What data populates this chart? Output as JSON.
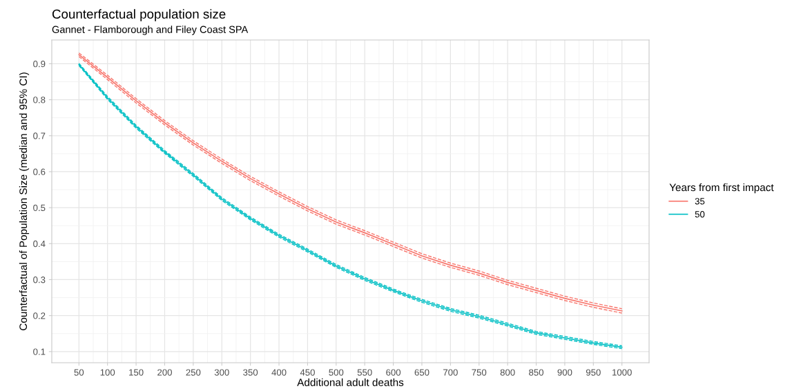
{
  "chart_data": {
    "type": "line",
    "title": "Counterfactual population size",
    "subtitle": "Gannet - Flamborough and Filey Coast SPA",
    "xlabel": "Additional adult deaths",
    "ylabel": "Counterfactual of Population Size (median and 95% CI)",
    "legend_title": "Years from first impact",
    "legend": "right",
    "grid": true,
    "line_style": "solid",
    "marker": "none",
    "x": [
      50,
      100,
      150,
      200,
      250,
      300,
      350,
      400,
      450,
      500,
      550,
      600,
      650,
      700,
      750,
      800,
      850,
      900,
      950,
      1000
    ],
    "series": [
      {
        "name": "35",
        "color": "#f8766d",
        "values": [
          0.925,
          0.862,
          0.797,
          0.736,
          0.68,
          0.629,
          0.581,
          0.538,
          0.497,
          0.46,
          0.43,
          0.398,
          0.366,
          0.34,
          0.318,
          0.292,
          0.27,
          0.248,
          0.229,
          0.213
        ]
      },
      {
        "color": "#f8766d",
        "line_style": "dashed",
        "values": [
          0.92,
          0.856,
          0.791,
          0.73,
          0.674,
          0.623,
          0.575,
          0.532,
          0.491,
          0.454,
          0.424,
          0.392,
          0.36,
          0.334,
          0.312,
          0.286,
          0.264,
          0.242,
          0.223,
          0.207
        ]
      },
      {
        "color": "#f8766d",
        "line_style": "dashed",
        "values": [
          0.93,
          0.868,
          0.803,
          0.742,
          0.686,
          0.635,
          0.587,
          0.544,
          0.503,
          0.466,
          0.436,
          0.404,
          0.372,
          0.346,
          0.324,
          0.298,
          0.276,
          0.254,
          0.235,
          0.219
        ]
      },
      {
        "name": "50",
        "color": "#00bfc4",
        "values": [
          0.898,
          0.805,
          0.725,
          0.655,
          0.591,
          0.524,
          0.47,
          0.422,
          0.381,
          0.338,
          0.302,
          0.27,
          0.241,
          0.216,
          0.197,
          0.175,
          0.152,
          0.138,
          0.124,
          0.112
        ]
      },
      {
        "color": "#00bfc4",
        "line_style": "dashed",
        "values": [
          0.895,
          0.801,
          0.721,
          0.651,
          0.587,
          0.52,
          0.466,
          0.418,
          0.377,
          0.334,
          0.298,
          0.266,
          0.237,
          0.212,
          0.193,
          0.171,
          0.148,
          0.134,
          0.12,
          0.108
        ]
      },
      {
        "color": "#00bfc4",
        "line_style": "dashed",
        "values": [
          0.901,
          0.809,
          0.729,
          0.659,
          0.595,
          0.528,
          0.474,
          0.426,
          0.385,
          0.342,
          0.306,
          0.274,
          0.245,
          0.22,
          0.201,
          0.179,
          0.156,
          0.142,
          0.128,
          0.116
        ]
      }
    ],
    "xlim": [
      2.5,
      1047.5
    ],
    "xticks": [
      50,
      100,
      150,
      200,
      250,
      300,
      350,
      400,
      450,
      500,
      550,
      600,
      650,
      700,
      750,
      800,
      850,
      900,
      950,
      1000
    ],
    "ylim": [
      0.069,
      0.966
    ],
    "yticks": [
      0.1,
      0.2,
      0.3,
      0.4,
      0.5,
      0.6,
      0.7,
      0.8,
      0.9
    ]
  }
}
